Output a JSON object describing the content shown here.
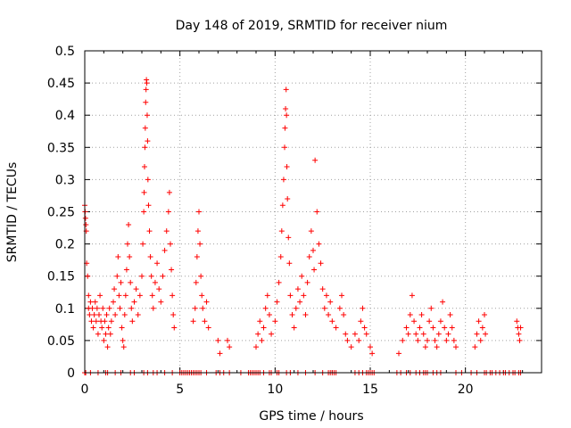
{
  "chart_data": {
    "type": "scatter",
    "title": "Day 148 of 2019, SRMTID for receiver nium",
    "xlabel": "GPS time / hours",
    "ylabel": "SRMTID / TECUs",
    "xlim": [
      0,
      24
    ],
    "ylim": [
      0,
      0.5
    ],
    "xticks": [
      0,
      5,
      10,
      15,
      20
    ],
    "xtick_labels": [
      "0",
      "5",
      "10",
      "15",
      "20"
    ],
    "yticks": [
      0,
      0.05,
      0.1,
      0.15,
      0.2,
      0.25,
      0.3,
      0.35,
      0.4,
      0.45,
      0.5
    ],
    "ytick_labels": [
      "0",
      "0.05",
      "0.1",
      "0.15",
      "0.2",
      "0.25",
      "0.3",
      "0.35",
      "0.4",
      "0.45",
      "0.5"
    ],
    "grid": true,
    "marker": "+",
    "color": "#ff0000",
    "series": [
      {
        "name": "SRMTID",
        "points": [
          [
            0.0,
            0.26
          ],
          [
            0.02,
            0.25
          ],
          [
            0.04,
            0.24
          ],
          [
            0.06,
            0.23
          ],
          [
            0.08,
            0.22
          ],
          [
            0.1,
            0.17
          ],
          [
            0.15,
            0.15
          ],
          [
            0.2,
            0.12
          ],
          [
            0.2,
            0.1
          ],
          [
            0.25,
            0.09
          ],
          [
            0.3,
            0.11
          ],
          [
            0.35,
            0.08
          ],
          [
            0.4,
            0.1
          ],
          [
            0.45,
            0.07
          ],
          [
            0.5,
            0.09
          ],
          [
            0.55,
            0.11
          ],
          [
            0.6,
            0.08
          ],
          [
            0.65,
            0.1
          ],
          [
            0.7,
            0.06
          ],
          [
            0.75,
            0.09
          ],
          [
            0.8,
            0.12
          ],
          [
            0.85,
            0.08
          ],
          [
            0.9,
            0.07
          ],
          [
            0.95,
            0.1
          ],
          [
            1.0,
            0.05
          ],
          [
            1.05,
            0.08
          ],
          [
            1.1,
            0.06
          ],
          [
            1.15,
            0.09
          ],
          [
            1.2,
            0.04
          ],
          [
            1.25,
            0.07
          ],
          [
            1.3,
            0.1
          ],
          [
            1.35,
            0.06
          ],
          [
            1.4,
            0.08
          ],
          [
            1.5,
            0.11
          ],
          [
            1.55,
            0.13
          ],
          [
            1.6,
            0.09
          ],
          [
            1.7,
            0.15
          ],
          [
            1.75,
            0.18
          ],
          [
            1.8,
            0.12
          ],
          [
            1.85,
            0.1
          ],
          [
            1.9,
            0.14
          ],
          [
            1.95,
            0.07
          ],
          [
            2.0,
            0.05
          ],
          [
            2.05,
            0.04
          ],
          [
            2.1,
            0.09
          ],
          [
            2.15,
            0.12
          ],
          [
            2.2,
            0.16
          ],
          [
            2.25,
            0.2
          ],
          [
            2.3,
            0.23
          ],
          [
            2.35,
            0.18
          ],
          [
            2.4,
            0.14
          ],
          [
            2.45,
            0.1
          ],
          [
            2.5,
            0.08
          ],
          [
            2.6,
            0.11
          ],
          [
            2.7,
            0.13
          ],
          [
            2.8,
            0.09
          ],
          [
            2.9,
            0.12
          ],
          [
            3.0,
            0.15
          ],
          [
            3.05,
            0.2
          ],
          [
            3.1,
            0.25
          ],
          [
            3.12,
            0.28
          ],
          [
            3.14,
            0.32
          ],
          [
            3.16,
            0.35
          ],
          [
            3.18,
            0.38
          ],
          [
            3.2,
            0.42
          ],
          [
            3.22,
            0.44
          ],
          [
            3.24,
            0.455
          ],
          [
            3.26,
            0.45
          ],
          [
            3.28,
            0.4
          ],
          [
            3.3,
            0.36
          ],
          [
            3.32,
            0.3
          ],
          [
            3.35,
            0.26
          ],
          [
            3.4,
            0.22
          ],
          [
            3.45,
            0.18
          ],
          [
            3.5,
            0.15
          ],
          [
            3.55,
            0.12
          ],
          [
            3.6,
            0.1
          ],
          [
            3.7,
            0.14
          ],
          [
            3.8,
            0.17
          ],
          [
            3.9,
            0.13
          ],
          [
            4.0,
            0.11
          ],
          [
            4.1,
            0.15
          ],
          [
            4.2,
            0.19
          ],
          [
            4.3,
            0.22
          ],
          [
            4.4,
            0.25
          ],
          [
            4.45,
            0.28
          ],
          [
            4.5,
            0.2
          ],
          [
            4.55,
            0.16
          ],
          [
            4.6,
            0.12
          ],
          [
            4.65,
            0.09
          ],
          [
            4.7,
            0.07
          ],
          [
            5.7,
            0.08
          ],
          [
            5.8,
            0.1
          ],
          [
            5.85,
            0.14
          ],
          [
            5.9,
            0.18
          ],
          [
            5.95,
            0.22
          ],
          [
            6.0,
            0.25
          ],
          [
            6.05,
            0.2
          ],
          [
            6.1,
            0.15
          ],
          [
            6.15,
            0.12
          ],
          [
            6.2,
            0.1
          ],
          [
            6.3,
            0.08
          ],
          [
            6.4,
            0.11
          ],
          [
            6.5,
            0.07
          ],
          [
            7.0,
            0.05
          ],
          [
            7.1,
            0.03
          ],
          [
            7.5,
            0.05
          ],
          [
            7.6,
            0.04
          ],
          [
            9.0,
            0.04
          ],
          [
            9.1,
            0.06
          ],
          [
            9.2,
            0.08
          ],
          [
            9.3,
            0.05
          ],
          [
            9.4,
            0.07
          ],
          [
            9.5,
            0.1
          ],
          [
            9.6,
            0.12
          ],
          [
            9.7,
            0.09
          ],
          [
            9.8,
            0.06
          ],
          [
            10.0,
            0.08
          ],
          [
            10.1,
            0.11
          ],
          [
            10.2,
            0.14
          ],
          [
            10.3,
            0.18
          ],
          [
            10.35,
            0.22
          ],
          [
            10.4,
            0.26
          ],
          [
            10.45,
            0.3
          ],
          [
            10.5,
            0.35
          ],
          [
            10.52,
            0.38
          ],
          [
            10.55,
            0.41
          ],
          [
            10.58,
            0.44
          ],
          [
            10.6,
            0.4
          ],
          [
            10.62,
            0.32
          ],
          [
            10.65,
            0.27
          ],
          [
            10.7,
            0.21
          ],
          [
            10.75,
            0.17
          ],
          [
            10.8,
            0.12
          ],
          [
            10.9,
            0.09
          ],
          [
            11.0,
            0.07
          ],
          [
            11.1,
            0.1
          ],
          [
            11.2,
            0.13
          ],
          [
            11.3,
            0.11
          ],
          [
            11.4,
            0.15
          ],
          [
            11.5,
            0.12
          ],
          [
            11.6,
            0.09
          ],
          [
            11.7,
            0.14
          ],
          [
            11.8,
            0.18
          ],
          [
            11.9,
            0.22
          ],
          [
            12.0,
            0.19
          ],
          [
            12.05,
            0.16
          ],
          [
            12.1,
            0.33
          ],
          [
            12.2,
            0.25
          ],
          [
            12.3,
            0.2
          ],
          [
            12.4,
            0.17
          ],
          [
            12.5,
            0.13
          ],
          [
            12.6,
            0.1
          ],
          [
            12.7,
            0.12
          ],
          [
            12.8,
            0.09
          ],
          [
            12.9,
            0.11
          ],
          [
            13.0,
            0.08
          ],
          [
            13.2,
            0.07
          ],
          [
            13.4,
            0.1
          ],
          [
            13.5,
            0.12
          ],
          [
            13.6,
            0.09
          ],
          [
            13.7,
            0.06
          ],
          [
            13.8,
            0.05
          ],
          [
            14.0,
            0.04
          ],
          [
            14.2,
            0.06
          ],
          [
            14.4,
            0.05
          ],
          [
            14.5,
            0.08
          ],
          [
            14.6,
            0.1
          ],
          [
            14.7,
            0.07
          ],
          [
            14.8,
            0.06
          ],
          [
            15.0,
            0.04
          ],
          [
            15.1,
            0.03
          ],
          [
            16.5,
            0.03
          ],
          [
            16.7,
            0.05
          ],
          [
            16.9,
            0.07
          ],
          [
            17.0,
            0.06
          ],
          [
            17.1,
            0.09
          ],
          [
            17.2,
            0.12
          ],
          [
            17.3,
            0.08
          ],
          [
            17.4,
            0.06
          ],
          [
            17.5,
            0.05
          ],
          [
            17.6,
            0.07
          ],
          [
            17.7,
            0.09
          ],
          [
            17.8,
            0.06
          ],
          [
            17.9,
            0.04
          ],
          [
            18.0,
            0.05
          ],
          [
            18.1,
            0.08
          ],
          [
            18.2,
            0.1
          ],
          [
            18.3,
            0.07
          ],
          [
            18.4,
            0.05
          ],
          [
            18.5,
            0.04
          ],
          [
            18.6,
            0.06
          ],
          [
            18.7,
            0.08
          ],
          [
            18.8,
            0.11
          ],
          [
            18.9,
            0.07
          ],
          [
            19.0,
            0.05
          ],
          [
            19.1,
            0.06
          ],
          [
            19.2,
            0.09
          ],
          [
            19.3,
            0.07
          ],
          [
            19.4,
            0.05
          ],
          [
            19.5,
            0.04
          ],
          [
            20.5,
            0.04
          ],
          [
            20.6,
            0.06
          ],
          [
            20.7,
            0.08
          ],
          [
            20.8,
            0.05
          ],
          [
            20.9,
            0.07
          ],
          [
            21.0,
            0.09
          ],
          [
            21.05,
            0.06
          ],
          [
            22.7,
            0.08
          ],
          [
            22.75,
            0.07
          ],
          [
            22.8,
            0.06
          ],
          [
            22.85,
            0.05
          ],
          [
            22.9,
            0.07
          ]
        ],
        "zero_points": [
          0.0,
          0.05,
          0.3,
          0.7,
          1.1,
          1.2,
          1.6,
          1.9,
          2.4,
          2.6,
          3.1,
          3.3,
          3.6,
          3.8,
          4.2,
          4.6,
          5.0,
          5.1,
          5.2,
          5.3,
          5.4,
          5.5,
          5.6,
          5.7,
          5.8,
          5.9,
          6.0,
          6.1,
          6.4,
          6.9,
          7.1,
          7.3,
          7.6,
          8.2,
          8.6,
          8.7,
          8.8,
          8.9,
          9.0,
          9.1,
          9.2,
          9.4,
          9.7,
          9.8,
          10.1,
          10.2,
          10.6,
          10.8,
          11.2,
          11.6,
          12.1,
          12.5,
          12.8,
          12.9,
          13.0,
          13.1,
          13.2,
          14.2,
          14.4,
          14.6,
          14.8,
          14.9,
          15.0,
          15.1,
          15.2,
          16.4,
          16.6,
          16.9,
          17.1,
          17.4,
          17.6,
          17.8,
          17.9,
          18.0,
          18.3,
          18.5,
          18.7,
          19.5,
          19.8,
          20.3,
          20.6,
          21.0,
          21.1,
          21.3,
          21.4,
          21.6,
          21.8,
          22.0,
          22.1,
          22.3,
          22.5,
          22.6,
          22.8,
          22.9
        ]
      }
    ]
  }
}
